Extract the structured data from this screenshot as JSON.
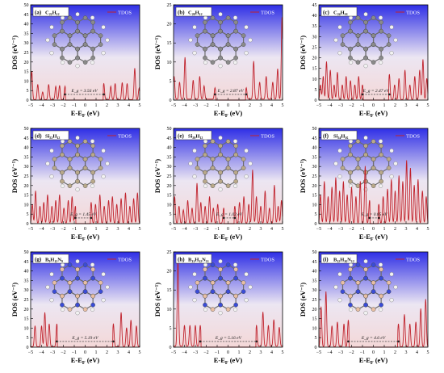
{
  "colors": {
    "line": "#c0222c",
    "bg_top": "#2f2fe6",
    "bg_mid": "#ece6f2",
    "bg_bottom": "#f4d8d8",
    "frame": "#000000",
    "atom_carbon": "#8a8a8a",
    "atom_silicon": "#b9a98a",
    "atom_boron": "#e8bfa3",
    "atom_nitrogen": "#3a4cd6",
    "atom_hydrogen": "#f2f2f2"
  },
  "chart_data": [
    {
      "type": "line",
      "label": "(a)",
      "formula": "C₂₂H₁₂",
      "legend": "TDOS",
      "xlabel": "E-E_F (eV)",
      "ylabel": "DOS (eV⁻¹)",
      "xlim": [
        -5,
        5
      ],
      "ylim": [
        0,
        50
      ],
      "xticks": [
        -5,
        -4,
        -3,
        -2,
        -1,
        0,
        1,
        2,
        3,
        4,
        5
      ],
      "yticks": [
        0,
        5,
        10,
        15,
        20,
        25,
        30,
        35,
        40,
        45,
        50
      ],
      "gap_label": "E_g = 3.56 eV",
      "gap_from": -1.85,
      "gap_to": 1.71,
      "molecule": "carbon",
      "peaks": [
        [
          -4.9,
          15
        ],
        [
          -4.35,
          8
        ],
        [
          -3.9,
          4
        ],
        [
          -3.35,
          8
        ],
        [
          -2.7,
          7
        ],
        [
          -2.35,
          7.5
        ],
        [
          -1.85,
          7
        ],
        [
          1.71,
          8.5
        ],
        [
          2.35,
          7
        ],
        [
          2.75,
          8.5
        ],
        [
          3.4,
          9
        ],
        [
          3.85,
          8.5
        ],
        [
          4.55,
          16.5
        ],
        [
          4.95,
          6
        ]
      ]
    },
    {
      "type": "line",
      "label": "(b)",
      "formula": "C₂₀H₁₂",
      "legend": "TDOS",
      "xlabel": "E-E_F (eV)",
      "ylabel": "DOS (eV⁻¹)",
      "xlim": [
        -5,
        5
      ],
      "ylim": [
        0,
        25
      ],
      "xticks": [
        -5,
        -4,
        -3,
        -2,
        -1,
        0,
        1,
        2,
        3,
        4,
        5
      ],
      "yticks": [
        0,
        5,
        10,
        15,
        20,
        25
      ],
      "gap_label": "E_g = 2.87 eV",
      "gap_from": -1.2,
      "gap_to": 1.67,
      "molecule": "carbon",
      "peaks": [
        [
          -4.95,
          6
        ],
        [
          -4.45,
          4.5
        ],
        [
          -3.95,
          11
        ],
        [
          -3.2,
          5
        ],
        [
          -2.6,
          6
        ],
        [
          -2.2,
          3.5
        ],
        [
          -1.2,
          3
        ],
        [
          1.67,
          3
        ],
        [
          2.35,
          10
        ],
        [
          2.9,
          4.5
        ],
        [
          3.5,
          6
        ],
        [
          4.1,
          4.5
        ],
        [
          4.55,
          8
        ],
        [
          4.95,
          21.5
        ]
      ]
    },
    {
      "type": "line",
      "label": "(c)",
      "formula": "C₂₄H₁₆",
      "legend": "TDOS",
      "xlabel": "E-E_F (eV)",
      "ylabel": "DOS (eV⁻¹)",
      "xlim": [
        -5,
        5
      ],
      "ylim": [
        0,
        45
      ],
      "xticks": [
        -5,
        -4,
        -3,
        -2,
        -1,
        0,
        1,
        2,
        3,
        4,
        5
      ],
      "yticks": [
        0,
        5,
        10,
        15,
        20,
        25,
        30,
        35,
        40,
        45
      ],
      "gap_label": "E_g = 2.47 eV",
      "gap_from": -1.0,
      "gap_to": 1.47,
      "molecule": "carbon",
      "peaks": [
        [
          -4.85,
          7
        ],
        [
          -4.6,
          11
        ],
        [
          -4.3,
          18
        ],
        [
          -3.95,
          14
        ],
        [
          -3.6,
          7
        ],
        [
          -3.3,
          13
        ],
        [
          -2.85,
          7
        ],
        [
          -2.5,
          11
        ],
        [
          -2.1,
          9
        ],
        [
          -1.7,
          7
        ],
        [
          -1.35,
          11
        ],
        [
          -1.0,
          7
        ],
        [
          1.47,
          12
        ],
        [
          1.95,
          7
        ],
        [
          2.35,
          10
        ],
        [
          2.9,
          14
        ],
        [
          3.35,
          7
        ],
        [
          3.8,
          11
        ],
        [
          4.25,
          14
        ],
        [
          4.55,
          19
        ],
        [
          4.9,
          10
        ]
      ]
    },
    {
      "type": "line",
      "label": "(d)",
      "formula": "Si₂₂H₁₂",
      "legend": "TDOS",
      "xlabel": "E-E_F (eV)",
      "ylabel": "DOS (eV⁻¹)",
      "xlim": [
        -5,
        5
      ],
      "ylim": [
        0,
        50
      ],
      "xticks": [
        -5,
        -4,
        -3,
        -2,
        -1,
        0,
        1,
        2,
        3,
        4,
        5
      ],
      "yticks": [
        0,
        5,
        10,
        15,
        20,
        25,
        30,
        35,
        40,
        45,
        50
      ],
      "gap_label": "E_g = 1.45 eV",
      "gap_from": -0.9,
      "gap_to": 0.55,
      "molecule": "silicon",
      "peaks": [
        [
          -4.85,
          10
        ],
        [
          -4.55,
          17
        ],
        [
          -4.15,
          9
        ],
        [
          -3.8,
          11
        ],
        [
          -3.45,
          15
        ],
        [
          -3.05,
          9
        ],
        [
          -2.7,
          12
        ],
        [
          -2.35,
          15
        ],
        [
          -1.95,
          8
        ],
        [
          -1.55,
          12
        ],
        [
          -1.2,
          14
        ],
        [
          -0.9,
          9
        ],
        [
          0.55,
          11
        ],
        [
          0.95,
          10
        ],
        [
          1.35,
          15
        ],
        [
          1.75,
          9
        ],
        [
          2.15,
          12
        ],
        [
          2.5,
          14
        ],
        [
          2.9,
          10
        ],
        [
          3.3,
          13
        ],
        [
          3.7,
          16
        ],
        [
          4.1,
          9
        ],
        [
          4.45,
          13
        ],
        [
          4.8,
          16
        ]
      ]
    },
    {
      "type": "line",
      "label": "(e)",
      "formula": "Si₂₀H₁₂",
      "legend": "TDOS",
      "xlabel": "E-E_F (eV)",
      "ylabel": "DOS (eV⁻¹)",
      "xlim": [
        -5,
        5
      ],
      "ylim": [
        0,
        50
      ],
      "xticks": [
        -5,
        -4,
        -3,
        -2,
        -1,
        0,
        1,
        2,
        3,
        4,
        5
      ],
      "yticks": [
        0,
        5,
        10,
        15,
        20,
        25,
        30,
        35,
        40,
        45,
        50
      ],
      "gap_label": "E_g = 1.02 eV",
      "gap_from": -0.4,
      "gap_to": 0.62,
      "molecule": "silicon",
      "peaks": [
        [
          -4.9,
          14
        ],
        [
          -4.5,
          9
        ],
        [
          -4.1,
          7
        ],
        [
          -3.7,
          12
        ],
        [
          -3.3,
          8
        ],
        [
          -2.85,
          21
        ],
        [
          -2.5,
          11
        ],
        [
          -2.1,
          9
        ],
        [
          -1.7,
          14
        ],
        [
          -1.35,
          8
        ],
        [
          -0.95,
          10
        ],
        [
          -0.4,
          8
        ],
        [
          0.62,
          9
        ],
        [
          1.05,
          11
        ],
        [
          1.45,
          14
        ],
        [
          1.9,
          10
        ],
        [
          2.25,
          28
        ],
        [
          2.6,
          14
        ],
        [
          3.0,
          9
        ],
        [
          3.4,
          17
        ],
        [
          3.8,
          8
        ],
        [
          4.25,
          20
        ],
        [
          4.6,
          9
        ],
        [
          4.9,
          12
        ]
      ]
    },
    {
      "type": "line",
      "label": "(f)",
      "formula": "Si₂₄H₁₆",
      "legend": "TDOS",
      "xlabel": "E-E_F (eV)",
      "ylabel": "DOS (eV⁻¹)",
      "xlim": [
        -5,
        5
      ],
      "ylim": [
        0,
        50
      ],
      "xticks": [
        -5,
        -4,
        -3,
        -2,
        -1,
        0,
        1,
        2,
        3,
        4,
        5
      ],
      "yticks": [
        0,
        5,
        10,
        15,
        20,
        25,
        30,
        35,
        40,
        45,
        50
      ],
      "gap_label": "E_g = 0.85 eV",
      "gap_from": -0.35,
      "gap_to": 0.5,
      "molecule": "silicon",
      "peaks": [
        [
          -4.85,
          15
        ],
        [
          -4.5,
          22
        ],
        [
          -4.15,
          14
        ],
        [
          -3.8,
          19
        ],
        [
          -3.45,
          24
        ],
        [
          -3.1,
          17
        ],
        [
          -2.75,
          22
        ],
        [
          -2.4,
          15
        ],
        [
          -2.0,
          19
        ],
        [
          -1.6,
          14
        ],
        [
          -1.2,
          22
        ],
        [
          -0.75,
          30
        ],
        [
          -0.35,
          12
        ],
        [
          0.5,
          10
        ],
        [
          0.9,
          14
        ],
        [
          1.3,
          18
        ],
        [
          1.65,
          23
        ],
        [
          2.0,
          17
        ],
        [
          2.35,
          25
        ],
        [
          2.7,
          22
        ],
        [
          3.05,
          33
        ],
        [
          3.4,
          29
        ],
        [
          3.75,
          20
        ],
        [
          4.1,
          23
        ],
        [
          4.5,
          17
        ],
        [
          4.85,
          14
        ]
      ]
    },
    {
      "type": "line",
      "label": "(g)",
      "formula": "B₉H₁₂N₉",
      "legend": "TDOS",
      "xlabel": "E-E_F (eV)",
      "ylabel": "DOS (eV⁻¹)",
      "xlim": [
        -5,
        5
      ],
      "ylim": [
        0,
        50
      ],
      "xticks": [
        -5,
        -4,
        -3,
        -2,
        -1,
        0,
        1,
        2,
        3,
        4,
        5
      ],
      "yticks": [
        0,
        5,
        10,
        15,
        20,
        25,
        30,
        35,
        40,
        45,
        50
      ],
      "gap_label": "E_g = 5.19 eV",
      "gap_from": -2.6,
      "gap_to": 2.59,
      "molecule": "bn",
      "peaks": [
        [
          -4.6,
          11
        ],
        [
          -4.0,
          11
        ],
        [
          -3.7,
          18
        ],
        [
          -3.3,
          12
        ],
        [
          -2.6,
          12
        ],
        [
          2.59,
          12
        ],
        [
          3.3,
          18
        ],
        [
          3.8,
          10
        ],
        [
          4.2,
          14
        ],
        [
          4.7,
          11
        ]
      ]
    },
    {
      "type": "line",
      "label": "(h)",
      "formula": "B₁₁H₁₂N₁₁",
      "legend": "TDOS",
      "xlabel": "E-E_F (eV)",
      "ylabel": "DOS (eV⁻¹)",
      "xlim": [
        -5,
        5
      ],
      "ylim": [
        0,
        25
      ],
      "xticks": [
        -5,
        -4,
        -3,
        -2,
        -1,
        0,
        1,
        2,
        3,
        4,
        5
      ],
      "yticks": [
        0,
        5,
        10,
        15,
        20,
        25
      ],
      "gap_label": "E_g = 5.16 eV",
      "gap_from": -2.55,
      "gap_to": 2.61,
      "molecule": "bn",
      "peaks": [
        [
          -4.6,
          23
        ],
        [
          -4.0,
          5.5
        ],
        [
          -3.5,
          5.5
        ],
        [
          -3.0,
          5.5
        ],
        [
          -2.55,
          5.5
        ],
        [
          2.61,
          5.5
        ],
        [
          3.2,
          9
        ],
        [
          3.7,
          5.5
        ],
        [
          4.2,
          7
        ],
        [
          4.7,
          5
        ]
      ]
    },
    {
      "type": "line",
      "label": "(i)",
      "formula": "B₁₂H₁₆N₁₂",
      "legend": "TDOS",
      "xlabel": "E-E_F (eV)",
      "ylabel": "DOS (eV⁻¹)",
      "xlim": [
        -5,
        5
      ],
      "ylim": [
        0,
        50
      ],
      "xticks": [
        -5,
        -4,
        -3,
        -2,
        -1,
        0,
        1,
        2,
        3,
        4,
        5
      ],
      "yticks": [
        0,
        5,
        10,
        15,
        20,
        25,
        30,
        35,
        40,
        45,
        50
      ],
      "gap_label": "E_g = 4.6 eV",
      "gap_from": -2.3,
      "gap_to": 2.3,
      "molecule": "bn",
      "peaks": [
        [
          -4.8,
          21
        ],
        [
          -4.35,
          29
        ],
        [
          -3.8,
          11
        ],
        [
          -3.3,
          13
        ],
        [
          -2.7,
          12
        ],
        [
          -2.3,
          14
        ],
        [
          2.3,
          12
        ],
        [
          2.85,
          17
        ],
        [
          3.35,
          12
        ],
        [
          3.9,
          13
        ],
        [
          4.35,
          20
        ],
        [
          4.8,
          25
        ]
      ]
    }
  ]
}
